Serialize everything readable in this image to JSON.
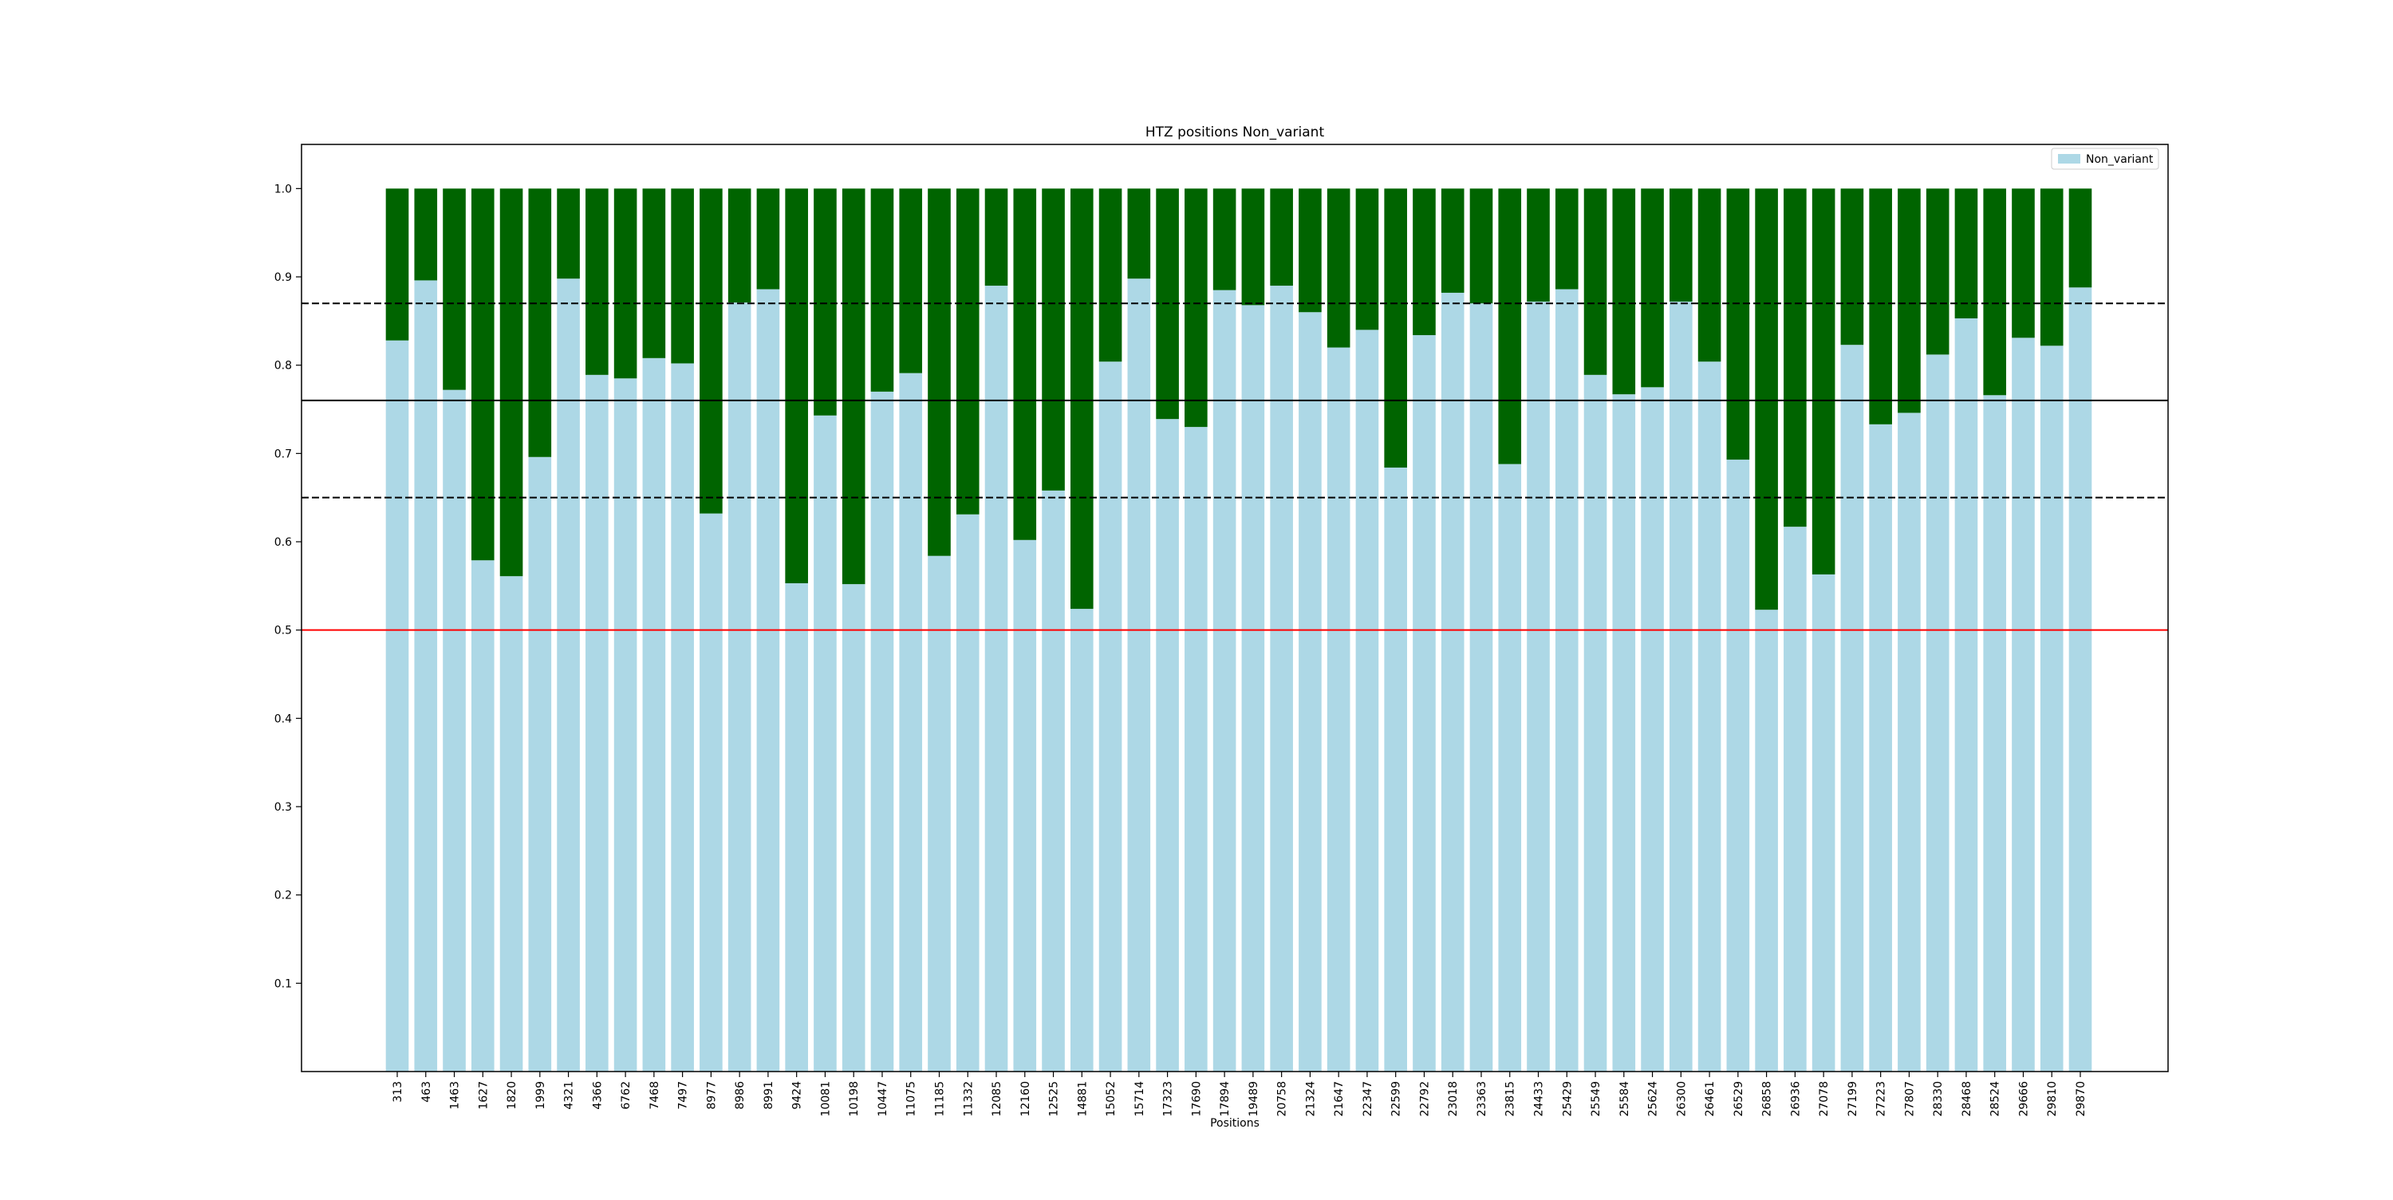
{
  "chart_data": {
    "type": "bar",
    "title": "HTZ positions Non_variant",
    "xlabel": "Positions",
    "ylabel": "",
    "ylim": [
      0,
      1.05
    ],
    "yticks": [
      "0.1",
      "0.2",
      "0.3",
      "0.4",
      "0.5",
      "0.6",
      "0.7",
      "0.8",
      "0.9",
      "1.0"
    ],
    "legend": {
      "placement": "top-right",
      "entries": [
        "Non_variant"
      ]
    },
    "grid": false,
    "stacked": true,
    "categories": [
      "313",
      "463",
      "1463",
      "1627",
      "1820",
      "1999",
      "4321",
      "4366",
      "6762",
      "7468",
      "7497",
      "8977",
      "8986",
      "8991",
      "9424",
      "10081",
      "10198",
      "10447",
      "11075",
      "11185",
      "11332",
      "12085",
      "12160",
      "12525",
      "14881",
      "15052",
      "15714",
      "17323",
      "17690",
      "17894",
      "19489",
      "20758",
      "21324",
      "21647",
      "22347",
      "22599",
      "22792",
      "23018",
      "23363",
      "23815",
      "24433",
      "25429",
      "25549",
      "25584",
      "25624",
      "26300",
      "26461",
      "26529",
      "26858",
      "26936",
      "27078",
      "27199",
      "27223",
      "27807",
      "28330",
      "28468",
      "28524",
      "29666",
      "29810",
      "29870"
    ],
    "series": [
      {
        "name": "Non_variant",
        "color": "#add8e6",
        "values": [
          0.828,
          0.896,
          0.772,
          0.579,
          0.561,
          0.696,
          0.898,
          0.789,
          0.785,
          0.808,
          0.802,
          0.632,
          0.871,
          0.886,
          0.553,
          0.743,
          0.552,
          0.77,
          0.791,
          0.584,
          0.631,
          0.89,
          0.602,
          0.658,
          0.524,
          0.804,
          0.898,
          0.739,
          0.73,
          0.885,
          0.868,
          0.89,
          0.86,
          0.82,
          0.84,
          0.684,
          0.834,
          0.882,
          0.87,
          0.688,
          0.872,
          0.886,
          0.789,
          0.767,
          0.775,
          0.872,
          0.804,
          0.693,
          0.523,
          0.617,
          0.563,
          0.823,
          0.733,
          0.746,
          0.812,
          0.853,
          0.766,
          0.831,
          0.822,
          0.888
        ]
      },
      {
        "color": "#006400",
        "values": [
          0.172,
          0.104,
          0.228,
          0.421,
          0.439,
          0.304,
          0.102,
          0.211,
          0.215,
          0.192,
          0.198,
          0.368,
          0.129,
          0.114,
          0.447,
          0.257,
          0.448,
          0.23,
          0.209,
          0.416,
          0.369,
          0.11,
          0.398,
          0.342,
          0.476,
          0.196,
          0.102,
          0.261,
          0.27,
          0.115,
          0.132,
          0.11,
          0.14,
          0.18,
          0.16,
          0.316,
          0.166,
          0.118,
          0.13,
          0.312,
          0.128,
          0.114,
          0.211,
          0.233,
          0.225,
          0.128,
          0.196,
          0.307,
          0.477,
          0.383,
          0.437,
          0.177,
          0.267,
          0.254,
          0.188,
          0.147,
          0.234,
          0.169,
          0.178,
          0.112
        ]
      }
    ],
    "reference_lines": [
      {
        "y": 0.87,
        "style": "dashed",
        "color": "#000000"
      },
      {
        "y": 0.76,
        "style": "solid",
        "color": "#000000"
      },
      {
        "y": 0.65,
        "style": "dashed",
        "color": "#000000"
      },
      {
        "y": 0.5,
        "style": "solid",
        "color": "#ff0000"
      }
    ]
  }
}
